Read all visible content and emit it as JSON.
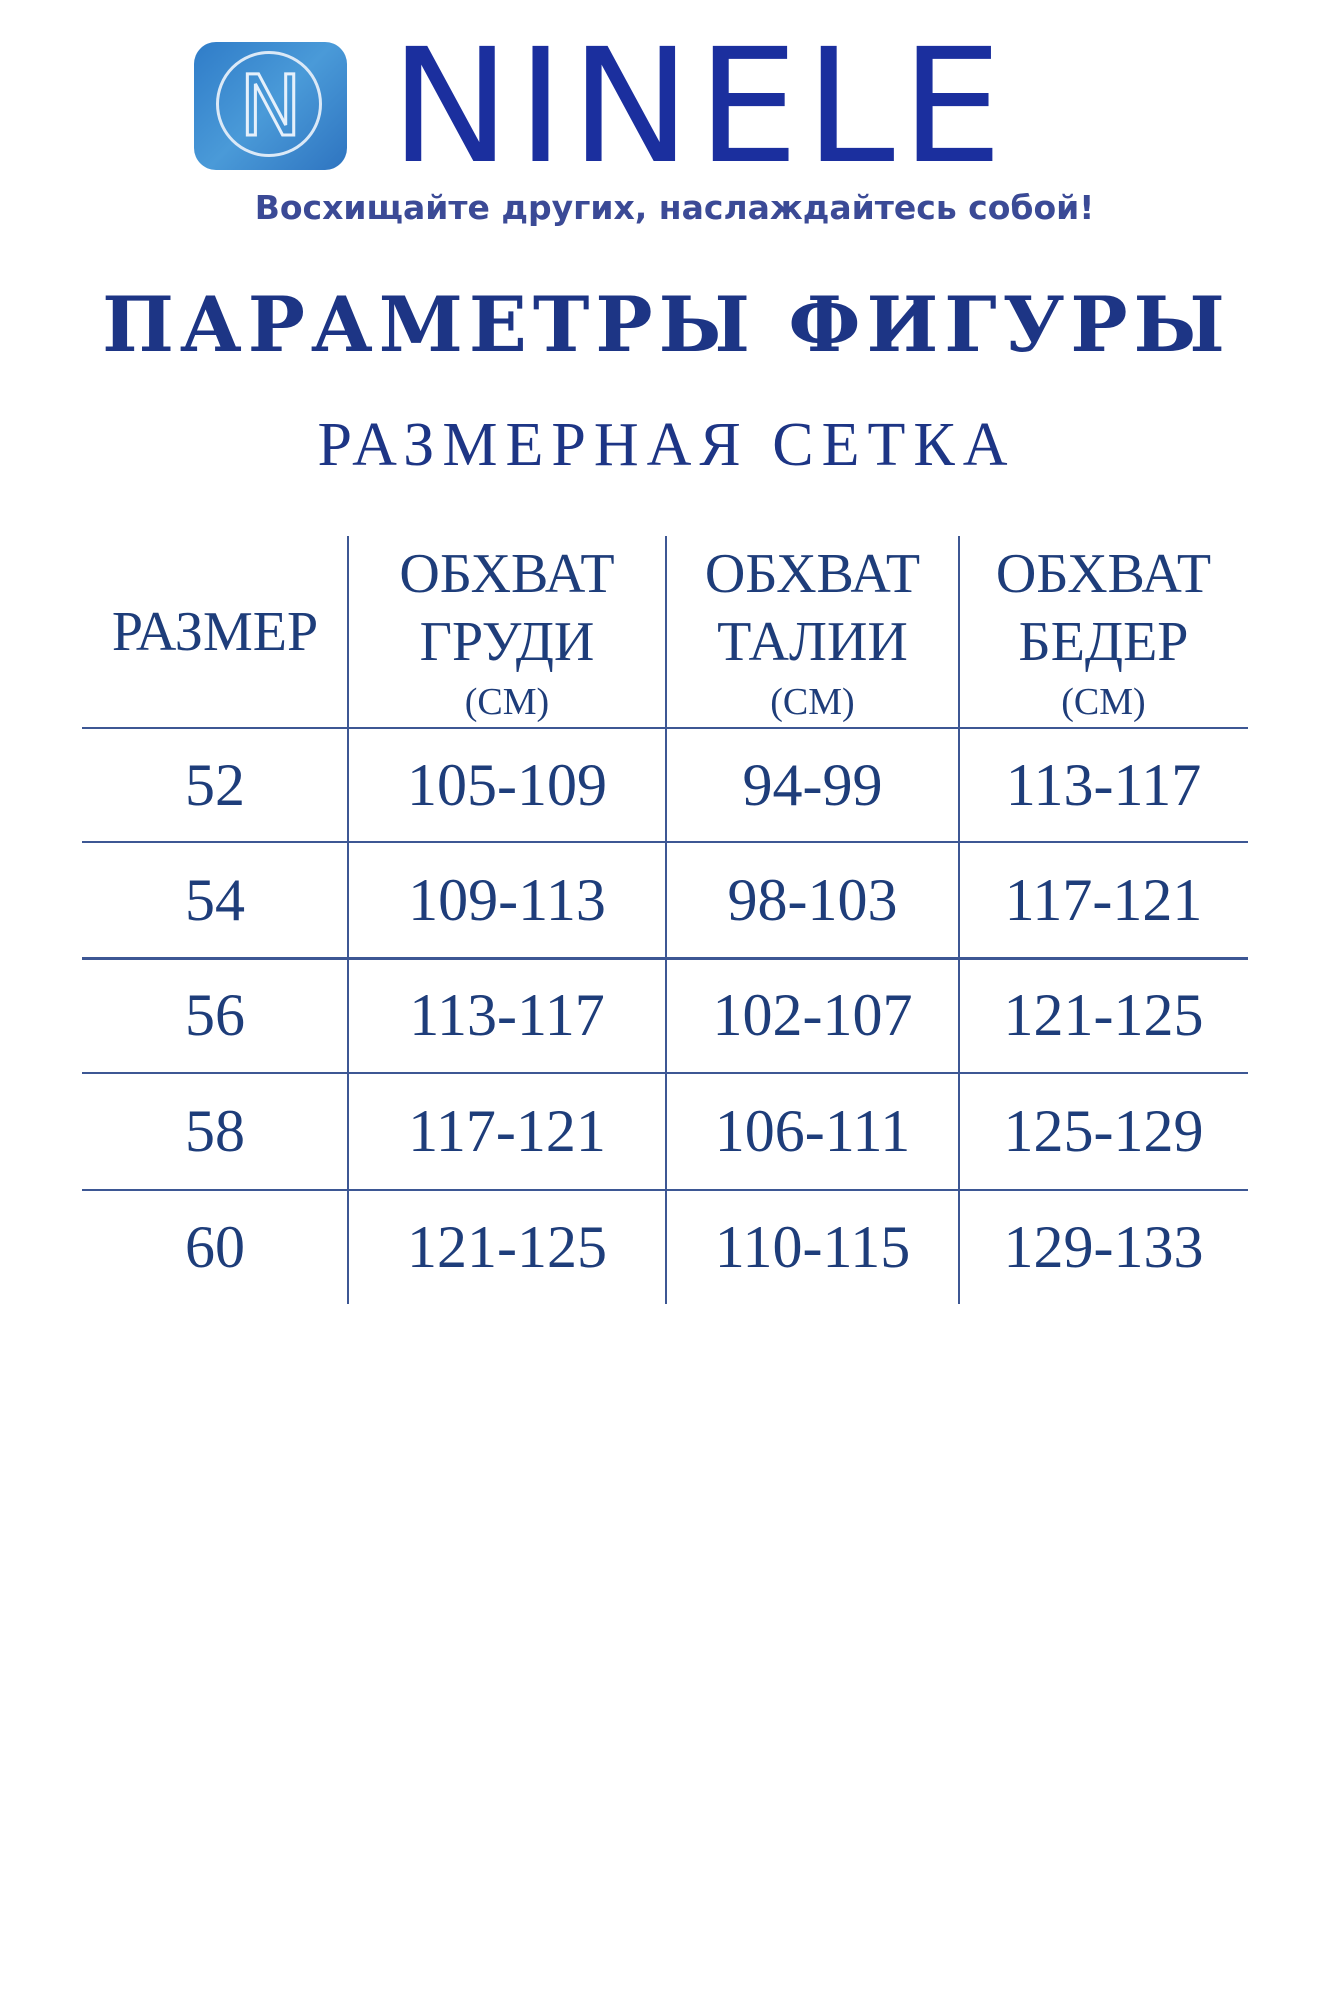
{
  "brand": {
    "name": "NINELE",
    "logo_letter": "N",
    "tagline": "Восхищайте других, наслаждайтесь собой!",
    "color": "#1b2f9e"
  },
  "title": "ПАРАМЕТРЫ ФИГУРЫ",
  "subtitle": "РАЗМЕРНАЯ СЕТКА",
  "table": {
    "headers": [
      {
        "line1": "РАЗМЕР",
        "line2": "",
        "unit": ""
      },
      {
        "line1": "ОБХВАТ",
        "line2": "ГРУДИ",
        "unit": "(СМ)"
      },
      {
        "line1": "ОБХВАТ",
        "line2": "ТАЛИИ",
        "unit": "(СМ)"
      },
      {
        "line1": "ОБХВАТ",
        "line2": "БЕДЕР",
        "unit": "(СМ)"
      }
    ],
    "rows": [
      [
        "52",
        "105-109",
        "94-99",
        "113-117"
      ],
      [
        "54",
        "109-113",
        "98-103",
        "117-121"
      ],
      [
        "56",
        "113-117",
        "102-107",
        "121-125"
      ],
      [
        "58",
        "117-121",
        "106-111",
        "125-129"
      ],
      [
        "60",
        "121-125",
        "110-115",
        "129-133"
      ]
    ]
  }
}
